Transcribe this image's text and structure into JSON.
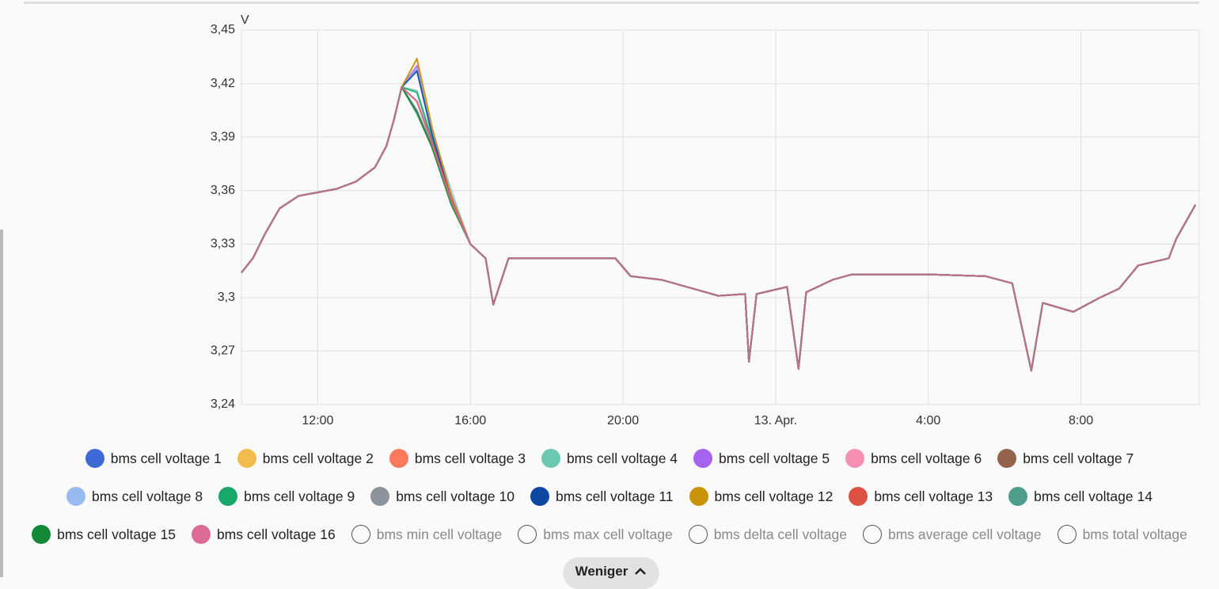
{
  "chart_data": {
    "type": "line",
    "unit": "V",
    "x": [
      10.0,
      10.3,
      10.6,
      11.0,
      11.5,
      12.0,
      12.5,
      13.0,
      13.5,
      13.8,
      14.0,
      14.2,
      14.6,
      15.0,
      15.5,
      16.0,
      16.4,
      16.6,
      17.0,
      18.0,
      19.8,
      20.2,
      21.0,
      22.0,
      22.5,
      23.2,
      23.3,
      23.5,
      24.3,
      24.6,
      24.8,
      25.5,
      26.0,
      28.0,
      29.5,
      30.2,
      30.7,
      31.0,
      31.8,
      32.5,
      33.0,
      33.5,
      34.3,
      34.5,
      35.0
    ],
    "xlim": [
      10,
      35.1
    ],
    "xticks": [
      {
        "value": 12,
        "label": "12:00"
      },
      {
        "value": 16,
        "label": "16:00"
      },
      {
        "value": 20,
        "label": "20:00"
      },
      {
        "value": 24,
        "label": "13. Apr."
      },
      {
        "value": 28,
        "label": "4:00"
      },
      {
        "value": 32,
        "label": "8:00"
      }
    ],
    "ylim": [
      3.24,
      3.45
    ],
    "yticks": [
      {
        "value": 3.24,
        "label": "3,24"
      },
      {
        "value": 3.27,
        "label": "3,27"
      },
      {
        "value": 3.3,
        "label": "3,3"
      },
      {
        "value": 3.33,
        "label": "3,33"
      },
      {
        "value": 3.36,
        "label": "3,36"
      },
      {
        "value": 3.39,
        "label": "3,39"
      },
      {
        "value": 3.42,
        "label": "3,42"
      },
      {
        "value": 3.45,
        "label": "3,45"
      }
    ],
    "grid": true,
    "series": [
      {
        "name": "bms cell voltage 1",
        "color": "#3f69d4",
        "values": [
          3.314,
          3.322,
          3.335,
          3.35,
          3.357,
          3.359,
          3.361,
          3.365,
          3.373,
          3.385,
          3.4,
          3.418,
          3.428,
          3.392,
          3.355,
          3.33,
          3.322,
          3.296,
          3.322,
          3.322,
          3.322,
          3.312,
          3.31,
          3.304,
          3.301,
          3.302,
          3.264,
          3.302,
          3.306,
          3.26,
          3.303,
          3.31,
          3.313,
          3.313,
          3.312,
          3.308,
          3.259,
          3.297,
          3.292,
          3.3,
          3.305,
          3.318,
          3.322,
          3.333,
          3.352
        ]
      },
      {
        "name": "bms cell voltage 2",
        "color": "#f2bb4e",
        "values": [
          3.314,
          3.322,
          3.335,
          3.35,
          3.357,
          3.359,
          3.361,
          3.365,
          3.373,
          3.385,
          3.4,
          3.418,
          3.434,
          3.394,
          3.355,
          3.33,
          3.322,
          3.296,
          3.322,
          3.322,
          3.322,
          3.312,
          3.31,
          3.304,
          3.301,
          3.302,
          3.264,
          3.302,
          3.306,
          3.26,
          3.303,
          3.31,
          3.313,
          3.313,
          3.312,
          3.308,
          3.259,
          3.297,
          3.292,
          3.3,
          3.305,
          3.318,
          3.322,
          3.333,
          3.352
        ]
      },
      {
        "name": "bms cell voltage 3",
        "color": "#fb7a5e",
        "values": [
          3.314,
          3.322,
          3.335,
          3.35,
          3.357,
          3.359,
          3.361,
          3.365,
          3.373,
          3.385,
          3.4,
          3.418,
          3.41,
          3.386,
          3.355,
          3.33,
          3.322,
          3.296,
          3.322,
          3.322,
          3.322,
          3.312,
          3.31,
          3.304,
          3.301,
          3.302,
          3.264,
          3.302,
          3.306,
          3.26,
          3.303,
          3.31,
          3.313,
          3.313,
          3.312,
          3.308,
          3.259,
          3.297,
          3.292,
          3.3,
          3.305,
          3.318,
          3.322,
          3.333,
          3.352
        ]
      },
      {
        "name": "bms cell voltage 4",
        "color": "#6dc8b2",
        "values": [
          3.314,
          3.322,
          3.335,
          3.35,
          3.357,
          3.359,
          3.361,
          3.365,
          3.373,
          3.385,
          3.4,
          3.418,
          3.416,
          3.389,
          3.358,
          3.33,
          3.322,
          3.296,
          3.322,
          3.322,
          3.322,
          3.312,
          3.31,
          3.304,
          3.301,
          3.302,
          3.264,
          3.302,
          3.306,
          3.26,
          3.303,
          3.31,
          3.313,
          3.313,
          3.312,
          3.308,
          3.259,
          3.297,
          3.292,
          3.3,
          3.305,
          3.318,
          3.322,
          3.333,
          3.352
        ]
      },
      {
        "name": "bms cell voltage 5",
        "color": "#a563f0",
        "values": [
          3.314,
          3.322,
          3.335,
          3.35,
          3.357,
          3.359,
          3.361,
          3.365,
          3.373,
          3.385,
          3.4,
          3.418,
          3.43,
          3.392,
          3.355,
          3.33,
          3.322,
          3.296,
          3.322,
          3.322,
          3.322,
          3.312,
          3.31,
          3.304,
          3.301,
          3.302,
          3.264,
          3.302,
          3.306,
          3.26,
          3.303,
          3.31,
          3.313,
          3.313,
          3.312,
          3.308,
          3.259,
          3.297,
          3.292,
          3.3,
          3.305,
          3.318,
          3.322,
          3.333,
          3.352
        ]
      },
      {
        "name": "bms cell voltage 6",
        "color": "#f78fb5",
        "values": [
          3.314,
          3.322,
          3.335,
          3.35,
          3.357,
          3.359,
          3.361,
          3.365,
          3.373,
          3.385,
          3.4,
          3.418,
          3.41,
          3.386,
          3.355,
          3.33,
          3.322,
          3.296,
          3.322,
          3.322,
          3.322,
          3.312,
          3.31,
          3.304,
          3.301,
          3.302,
          3.264,
          3.302,
          3.306,
          3.26,
          3.303,
          3.31,
          3.313,
          3.313,
          3.312,
          3.308,
          3.259,
          3.297,
          3.292,
          3.3,
          3.305,
          3.318,
          3.322,
          3.333,
          3.352
        ]
      },
      {
        "name": "bms cell voltage 7",
        "color": "#94634b",
        "values": [
          3.314,
          3.322,
          3.335,
          3.35,
          3.357,
          3.359,
          3.361,
          3.365,
          3.373,
          3.385,
          3.4,
          3.418,
          3.404,
          3.384,
          3.353,
          3.33,
          3.322,
          3.296,
          3.322,
          3.322,
          3.322,
          3.312,
          3.31,
          3.304,
          3.301,
          3.302,
          3.264,
          3.302,
          3.306,
          3.26,
          3.303,
          3.31,
          3.313,
          3.313,
          3.312,
          3.308,
          3.259,
          3.297,
          3.292,
          3.3,
          3.305,
          3.318,
          3.322,
          3.333,
          3.352
        ]
      },
      {
        "name": "bms cell voltage 8",
        "color": "#97baf0",
        "values": [
          3.314,
          3.322,
          3.335,
          3.35,
          3.357,
          3.359,
          3.361,
          3.365,
          3.373,
          3.385,
          3.4,
          3.418,
          3.428,
          3.393,
          3.36,
          3.33,
          3.322,
          3.296,
          3.322,
          3.322,
          3.322,
          3.312,
          3.31,
          3.304,
          3.301,
          3.302,
          3.264,
          3.302,
          3.306,
          3.26,
          3.303,
          3.31,
          3.313,
          3.313,
          3.312,
          3.308,
          3.259,
          3.297,
          3.292,
          3.3,
          3.305,
          3.318,
          3.322,
          3.333,
          3.352
        ]
      },
      {
        "name": "bms cell voltage 9",
        "color": "#17a86a",
        "values": [
          3.314,
          3.322,
          3.335,
          3.35,
          3.357,
          3.359,
          3.361,
          3.365,
          3.373,
          3.385,
          3.4,
          3.418,
          3.415,
          3.388,
          3.355,
          3.33,
          3.322,
          3.296,
          3.322,
          3.322,
          3.322,
          3.312,
          3.31,
          3.304,
          3.301,
          3.302,
          3.264,
          3.302,
          3.306,
          3.26,
          3.303,
          3.31,
          3.313,
          3.313,
          3.312,
          3.308,
          3.259,
          3.297,
          3.292,
          3.3,
          3.305,
          3.318,
          3.322,
          3.333,
          3.352
        ]
      },
      {
        "name": "bms cell voltage 10",
        "color": "#8d939b",
        "values": [
          3.314,
          3.322,
          3.335,
          3.35,
          3.357,
          3.359,
          3.361,
          3.365,
          3.373,
          3.385,
          3.4,
          3.418,
          3.405,
          3.385,
          3.353,
          3.33,
          3.322,
          3.296,
          3.322,
          3.322,
          3.322,
          3.312,
          3.31,
          3.304,
          3.301,
          3.302,
          3.264,
          3.302,
          3.306,
          3.26,
          3.303,
          3.31,
          3.313,
          3.313,
          3.312,
          3.308,
          3.259,
          3.297,
          3.292,
          3.3,
          3.305,
          3.318,
          3.322,
          3.333,
          3.352
        ]
      },
      {
        "name": "bms cell voltage 11",
        "color": "#0d47a1",
        "values": [
          3.314,
          3.322,
          3.335,
          3.35,
          3.357,
          3.359,
          3.361,
          3.365,
          3.373,
          3.385,
          3.4,
          3.418,
          3.427,
          3.391,
          3.355,
          3.33,
          3.322,
          3.296,
          3.322,
          3.322,
          3.322,
          3.312,
          3.31,
          3.304,
          3.301,
          3.302,
          3.264,
          3.302,
          3.306,
          3.26,
          3.303,
          3.31,
          3.313,
          3.313,
          3.312,
          3.308,
          3.259,
          3.297,
          3.292,
          3.3,
          3.305,
          3.318,
          3.322,
          3.333,
          3.352
        ]
      },
      {
        "name": "bms cell voltage 12",
        "color": "#c9930a",
        "values": [
          3.314,
          3.322,
          3.335,
          3.35,
          3.357,
          3.359,
          3.361,
          3.365,
          3.373,
          3.385,
          3.4,
          3.418,
          3.434,
          3.395,
          3.357,
          3.33,
          3.322,
          3.296,
          3.322,
          3.322,
          3.322,
          3.312,
          3.31,
          3.304,
          3.301,
          3.302,
          3.264,
          3.302,
          3.306,
          3.26,
          3.303,
          3.31,
          3.313,
          3.313,
          3.312,
          3.308,
          3.259,
          3.297,
          3.292,
          3.3,
          3.305,
          3.318,
          3.322,
          3.333,
          3.352
        ]
      },
      {
        "name": "bms cell voltage 13",
        "color": "#dd5243",
        "values": [
          3.314,
          3.322,
          3.335,
          3.35,
          3.357,
          3.359,
          3.361,
          3.365,
          3.373,
          3.385,
          3.4,
          3.418,
          3.41,
          3.387,
          3.355,
          3.33,
          3.322,
          3.296,
          3.322,
          3.322,
          3.322,
          3.312,
          3.31,
          3.304,
          3.301,
          3.302,
          3.264,
          3.302,
          3.306,
          3.26,
          3.303,
          3.31,
          3.313,
          3.313,
          3.312,
          3.308,
          3.259,
          3.297,
          3.292,
          3.3,
          3.305,
          3.318,
          3.322,
          3.333,
          3.352
        ]
      },
      {
        "name": "bms cell voltage 14",
        "color": "#4d9d8c",
        "values": [
          3.314,
          3.322,
          3.335,
          3.35,
          3.357,
          3.359,
          3.361,
          3.365,
          3.373,
          3.385,
          3.4,
          3.418,
          3.403,
          3.384,
          3.353,
          3.33,
          3.322,
          3.296,
          3.322,
          3.322,
          3.322,
          3.312,
          3.31,
          3.304,
          3.301,
          3.302,
          3.264,
          3.302,
          3.306,
          3.26,
          3.303,
          3.31,
          3.313,
          3.313,
          3.312,
          3.308,
          3.259,
          3.297,
          3.292,
          3.3,
          3.305,
          3.318,
          3.322,
          3.333,
          3.352
        ]
      },
      {
        "name": "bms cell voltage 15",
        "color": "#128a35",
        "values": [
          3.314,
          3.322,
          3.335,
          3.35,
          3.357,
          3.359,
          3.361,
          3.365,
          3.373,
          3.385,
          3.4,
          3.418,
          3.404,
          3.384,
          3.352,
          3.33,
          3.322,
          3.296,
          3.322,
          3.322,
          3.322,
          3.312,
          3.31,
          3.304,
          3.301,
          3.302,
          3.264,
          3.302,
          3.306,
          3.26,
          3.303,
          3.31,
          3.313,
          3.313,
          3.312,
          3.308,
          3.259,
          3.297,
          3.292,
          3.3,
          3.305,
          3.318,
          3.322,
          3.333,
          3.352
        ]
      },
      {
        "name": "bms cell voltage 16",
        "color": "#dc6b96",
        "values": [
          3.314,
          3.322,
          3.335,
          3.35,
          3.357,
          3.359,
          3.361,
          3.365,
          3.373,
          3.385,
          3.4,
          3.418,
          3.41,
          3.386,
          3.354,
          3.33,
          3.322,
          3.296,
          3.322,
          3.322,
          3.322,
          3.312,
          3.31,
          3.304,
          3.301,
          3.302,
          3.264,
          3.302,
          3.306,
          3.26,
          3.303,
          3.31,
          3.313,
          3.313,
          3.312,
          3.308,
          3.259,
          3.297,
          3.292,
          3.3,
          3.305,
          3.318,
          3.322,
          3.333,
          3.352
        ]
      },
      {
        "name": "bms min cell voltage",
        "visible": false
      },
      {
        "name": "bms max cell voltage",
        "visible": false
      },
      {
        "name": "bms delta cell voltage",
        "visible": false
      },
      {
        "name": "bms average cell voltage",
        "visible": false
      },
      {
        "name": "bms total voltage",
        "visible": false
      }
    ]
  },
  "button": "Weniger"
}
